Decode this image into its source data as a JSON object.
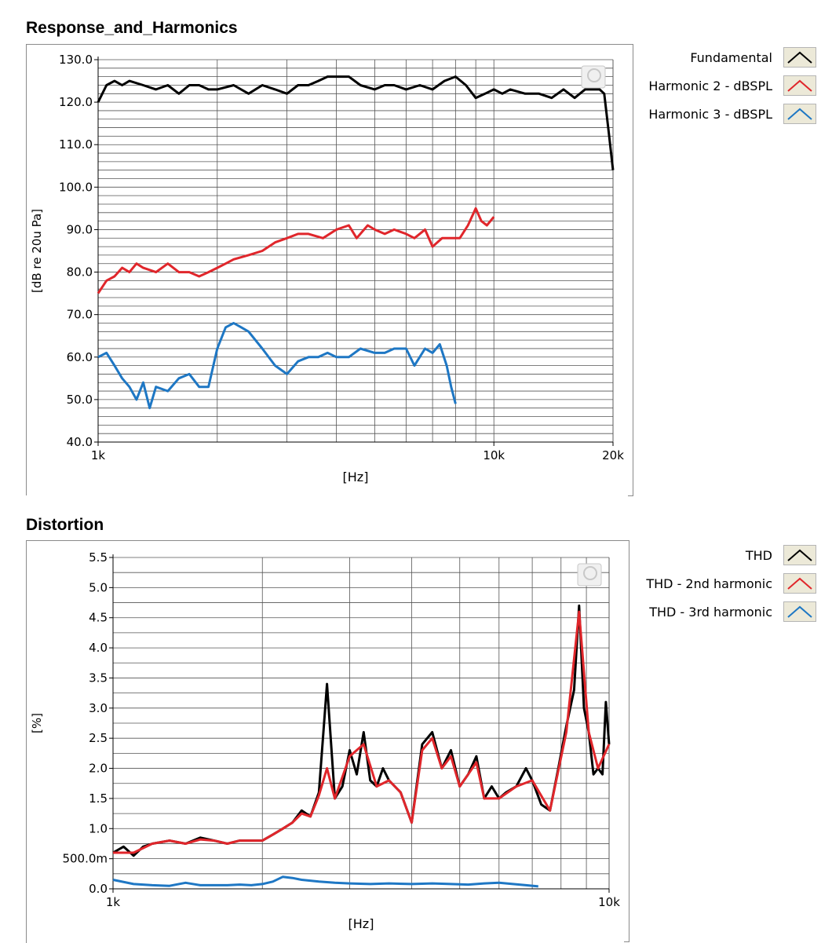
{
  "chart_data": [
    {
      "type": "line",
      "title": "Response_and_Harmonics",
      "xlabel": "[Hz]",
      "ylabel": "[dB re 20u Pa]",
      "x_scale": "log",
      "xlim": [
        1000,
        20000
      ],
      "ylim": [
        40,
        130
      ],
      "xticks": [
        1000,
        10000,
        20000
      ],
      "xtick_labels": [
        "1k",
        "10k",
        "20k"
      ],
      "yticks": [
        40,
        50,
        60,
        70,
        80,
        90,
        100,
        110,
        120,
        130
      ],
      "ytick_labels": [
        "40.0",
        "50.0",
        "60.0",
        "70.0",
        "80.0",
        "90.0",
        "100.0",
        "110.0",
        "120.0",
        "130.0"
      ],
      "grid": true,
      "legend_position": "right",
      "series": [
        {
          "name": "Fundamental",
          "color": "#000000",
          "x": [
            1000,
            1050,
            1100,
            1150,
            1200,
            1300,
            1400,
            1500,
            1600,
            1700,
            1800,
            1900,
            2000,
            2200,
            2400,
            2600,
            2800,
            3000,
            3200,
            3400,
            3600,
            3800,
            4000,
            4300,
            4600,
            5000,
            5300,
            5600,
            6000,
            6500,
            7000,
            7500,
            8000,
            8500,
            9000,
            9500,
            10000,
            10500,
            11000,
            12000,
            13000,
            14000,
            15000,
            16000,
            17000,
            18000,
            18500,
            19000,
            19500,
            20000
          ],
          "y": [
            120,
            124,
            125,
            124,
            125,
            124,
            123,
            124,
            122,
            124,
            124,
            123,
            123,
            124,
            122,
            124,
            123,
            122,
            124,
            124,
            125,
            126,
            126,
            126,
            124,
            123,
            124,
            124,
            123,
            124,
            123,
            125,
            126,
            124,
            121,
            122,
            123,
            122,
            123,
            122,
            122,
            121,
            123,
            121,
            123,
            123,
            123,
            122,
            113,
            104
          ]
        },
        {
          "name": "Harmonic 2 - dBSPL",
          "color": "#e0262b",
          "x": [
            1000,
            1050,
            1100,
            1150,
            1200,
            1250,
            1300,
            1400,
            1500,
            1600,
            1700,
            1800,
            1900,
            2000,
            2100,
            2200,
            2400,
            2600,
            2800,
            3000,
            3200,
            3400,
            3700,
            4000,
            4300,
            4500,
            4800,
            5000,
            5300,
            5600,
            6000,
            6300,
            6700,
            7000,
            7400,
            7800,
            8200,
            8600,
            9000,
            9300,
            9600,
            10000
          ],
          "y": [
            75,
            78,
            79,
            81,
            80,
            82,
            81,
            80,
            82,
            80,
            80,
            79,
            80,
            81,
            82,
            83,
            84,
            85,
            87,
            88,
            89,
            89,
            88,
            90,
            91,
            88,
            91,
            90,
            89,
            90,
            89,
            88,
            90,
            86,
            88,
            88,
            88,
            91,
            95,
            92,
            91,
            93
          ]
        },
        {
          "name": "Harmonic 3 - dBSPL",
          "color": "#1e77c4",
          "x": [
            1000,
            1050,
            1100,
            1150,
            1200,
            1250,
            1300,
            1350,
            1400,
            1500,
            1600,
            1700,
            1800,
            1900,
            2000,
            2100,
            2200,
            2300,
            2400,
            2600,
            2800,
            3000,
            3200,
            3400,
            3600,
            3800,
            4000,
            4300,
            4600,
            5000,
            5300,
            5600,
            6000,
            6300,
            6700,
            7000,
            7300,
            7600,
            7800,
            8000
          ],
          "y": [
            60,
            61,
            58,
            55,
            53,
            50,
            54,
            48,
            53,
            52,
            55,
            56,
            53,
            53,
            62,
            67,
            68,
            67,
            66,
            62,
            58,
            56,
            59,
            60,
            60,
            61,
            60,
            60,
            62,
            61,
            61,
            62,
            62,
            58,
            62,
            61,
            63,
            58,
            53,
            49
          ]
        }
      ]
    },
    {
      "type": "line",
      "title": "Distortion",
      "xlabel": "[Hz]",
      "ylabel": "[%]",
      "x_scale": "log",
      "xlim": [
        1000,
        10000
      ],
      "ylim": [
        0,
        5.5
      ],
      "xticks": [
        1000,
        10000
      ],
      "xtick_labels": [
        "1k",
        "10k"
      ],
      "yticks": [
        0,
        0.5,
        1.0,
        1.5,
        2.0,
        2.5,
        3.0,
        3.5,
        4.0,
        4.5,
        5.0,
        5.5
      ],
      "ytick_labels": [
        "0.0",
        "500.0m",
        "1.0",
        "1.5",
        "2.0",
        "2.5",
        "3.0",
        "3.5",
        "4.0",
        "4.5",
        "5.0",
        "5.5"
      ],
      "grid": true,
      "legend_position": "right",
      "series": [
        {
          "name": "THD",
          "color": "#000000",
          "x": [
            1000,
            1050,
            1100,
            1150,
            1200,
            1300,
            1400,
            1500,
            1600,
            1700,
            1800,
            1900,
            2000,
            2100,
            2200,
            2300,
            2400,
            2500,
            2600,
            2700,
            2800,
            2900,
            3000,
            3100,
            3200,
            3300,
            3400,
            3500,
            3600,
            3800,
            4000,
            4200,
            4400,
            4600,
            4800,
            5000,
            5200,
            5400,
            5600,
            5800,
            6000,
            6200,
            6500,
            6800,
            7000,
            7300,
            7600,
            7900,
            8200,
            8500,
            8700,
            8900,
            9100,
            9300,
            9500,
            9700,
            9850,
            10000
          ],
          "y": [
            0.6,
            0.7,
            0.55,
            0.7,
            0.75,
            0.8,
            0.75,
            0.85,
            0.8,
            0.75,
            0.8,
            0.8,
            0.8,
            0.9,
            1.0,
            1.1,
            1.3,
            1.2,
            1.6,
            3.4,
            1.5,
            1.7,
            2.3,
            1.9,
            2.6,
            1.8,
            1.7,
            2.0,
            1.8,
            1.6,
            1.1,
            2.4,
            2.6,
            2.0,
            2.3,
            1.7,
            1.9,
            2.2,
            1.5,
            1.7,
            1.5,
            1.6,
            1.7,
            2.0,
            1.8,
            1.4,
            1.3,
            2.0,
            2.7,
            3.3,
            4.7,
            3.0,
            2.6,
            1.9,
            2.0,
            1.9,
            3.1,
            2.4
          ]
        },
        {
          "name": "THD - 2nd harmonic",
          "color": "#e0262b",
          "x": [
            1000,
            1100,
            1200,
            1300,
            1400,
            1500,
            1600,
            1700,
            1800,
            1900,
            2000,
            2100,
            2200,
            2300,
            2400,
            2500,
            2600,
            2700,
            2800,
            3000,
            3200,
            3400,
            3600,
            3800,
            4000,
            4200,
            4400,
            4600,
            4800,
            5000,
            5200,
            5400,
            5600,
            6000,
            6500,
            7000,
            7600,
            8200,
            8700,
            9100,
            9500,
            10000
          ],
          "y": [
            0.6,
            0.6,
            0.75,
            0.8,
            0.75,
            0.82,
            0.8,
            0.75,
            0.8,
            0.8,
            0.8,
            0.9,
            1.0,
            1.1,
            1.25,
            1.2,
            1.55,
            2.0,
            1.5,
            2.2,
            2.4,
            1.7,
            1.8,
            1.6,
            1.1,
            2.3,
            2.5,
            2.0,
            2.2,
            1.7,
            1.9,
            2.1,
            1.5,
            1.5,
            1.7,
            1.8,
            1.3,
            2.6,
            4.6,
            2.6,
            2.0,
            2.4
          ]
        },
        {
          "name": "THD - 3rd harmonic",
          "color": "#1e77c4",
          "x": [
            1000,
            1100,
            1200,
            1300,
            1400,
            1500,
            1600,
            1700,
            1800,
            1900,
            2000,
            2100,
            2200,
            2300,
            2400,
            2600,
            2800,
            3000,
            3300,
            3600,
            4000,
            4400,
            4800,
            5200,
            5600,
            6000,
            6400,
            6800,
            7200
          ],
          "y": [
            0.15,
            0.08,
            0.06,
            0.05,
            0.1,
            0.06,
            0.06,
            0.06,
            0.07,
            0.06,
            0.08,
            0.12,
            0.2,
            0.18,
            0.15,
            0.12,
            0.1,
            0.09,
            0.08,
            0.09,
            0.08,
            0.09,
            0.08,
            0.07,
            0.09,
            0.1,
            0.08,
            0.06,
            0.04
          ]
        }
      ]
    }
  ]
}
